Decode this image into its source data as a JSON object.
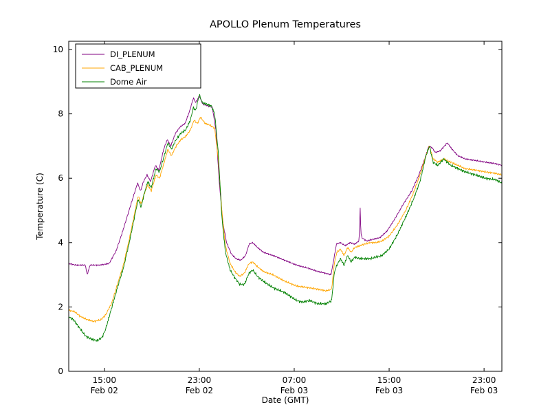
{
  "chart_data": {
    "type": "line",
    "title": "APOLLO Plenum Temperatures",
    "xlabel": "Date (GMT)",
    "ylabel": "Temperature (C)",
    "ylim": [
      0,
      10
    ],
    "yticks": [
      0,
      2,
      4,
      6,
      8,
      10
    ],
    "x_unit_hours_since": "Feb 02 12:00 GMT",
    "xlim": [
      0,
      36.5
    ],
    "xticks": [
      {
        "t": 3,
        "time": "15:00",
        "date": "Feb 02"
      },
      {
        "t": 11,
        "time": "23:00",
        "date": "Feb 02"
      },
      {
        "t": 19,
        "time": "07:00",
        "date": "Feb 03"
      },
      {
        "t": 27,
        "time": "15:00",
        "date": "Feb 03"
      },
      {
        "t": 35,
        "time": "23:00",
        "date": "Feb 03"
      }
    ],
    "legend_position": "upper-left",
    "series": [
      {
        "name": "DI_PLENUM",
        "color": "#800080",
        "noise_amp": 0.03,
        "seed": 1,
        "points": [
          [
            0,
            3.35
          ],
          [
            0.6,
            3.3
          ],
          [
            1.4,
            3.3
          ],
          [
            1.55,
            3.0
          ],
          [
            1.8,
            3.3
          ],
          [
            2.6,
            3.3
          ],
          [
            3.4,
            3.35
          ],
          [
            4,
            3.75
          ],
          [
            4.5,
            4.3
          ],
          [
            5,
            4.9
          ],
          [
            5.5,
            5.5
          ],
          [
            5.8,
            5.85
          ],
          [
            6.05,
            5.6
          ],
          [
            6.3,
            5.9
          ],
          [
            6.6,
            6.1
          ],
          [
            6.9,
            5.9
          ],
          [
            7.3,
            6.4
          ],
          [
            7.6,
            6.25
          ],
          [
            8,
            6.9
          ],
          [
            8.3,
            7.2
          ],
          [
            8.6,
            7.0
          ],
          [
            9,
            7.4
          ],
          [
            9.4,
            7.6
          ],
          [
            9.8,
            7.7
          ],
          [
            10.2,
            8.1
          ],
          [
            10.5,
            8.5
          ],
          [
            10.7,
            8.35
          ],
          [
            11,
            8.55
          ],
          [
            11.3,
            8.3
          ],
          [
            11.7,
            8.25
          ],
          [
            12.1,
            8.2
          ],
          [
            12.4,
            7.5
          ],
          [
            12.7,
            5.8
          ],
          [
            13,
            4.6
          ],
          [
            13.3,
            4.0
          ],
          [
            13.7,
            3.65
          ],
          [
            14.1,
            3.5
          ],
          [
            14.5,
            3.45
          ],
          [
            14.9,
            3.6
          ],
          [
            15.2,
            3.95
          ],
          [
            15.5,
            4.0
          ],
          [
            15.9,
            3.85
          ],
          [
            16.4,
            3.7
          ],
          [
            17.2,
            3.6
          ],
          [
            18.2,
            3.45
          ],
          [
            19.2,
            3.3
          ],
          [
            20.2,
            3.2
          ],
          [
            21,
            3.1
          ],
          [
            21.6,
            3.05
          ],
          [
            22.1,
            3.0
          ],
          [
            22.35,
            3.5
          ],
          [
            22.55,
            3.95
          ],
          [
            22.9,
            4.0
          ],
          [
            23.3,
            3.9
          ],
          [
            23.7,
            4.0
          ],
          [
            24.1,
            3.95
          ],
          [
            24.45,
            4.05
          ],
          [
            24.5,
            4.3
          ],
          [
            24.55,
            5.2
          ],
          [
            24.62,
            4.3
          ],
          [
            24.7,
            4.15
          ],
          [
            25.1,
            4.05
          ],
          [
            25.6,
            4.1
          ],
          [
            26.2,
            4.15
          ],
          [
            26.8,
            4.35
          ],
          [
            27.5,
            4.75
          ],
          [
            28.2,
            5.2
          ],
          [
            28.9,
            5.6
          ],
          [
            29.5,
            6.1
          ],
          [
            30,
            6.6
          ],
          [
            30.35,
            7.0
          ],
          [
            30.6,
            6.95
          ],
          [
            30.9,
            6.8
          ],
          [
            31.3,
            6.85
          ],
          [
            31.9,
            7.1
          ],
          [
            32.3,
            6.9
          ],
          [
            32.8,
            6.7
          ],
          [
            33.4,
            6.6
          ],
          [
            34.3,
            6.55
          ],
          [
            35.1,
            6.5
          ],
          [
            36,
            6.45
          ],
          [
            36.5,
            6.4
          ]
        ]
      },
      {
        "name": "CAB_PLENUM",
        "color": "#ffa500",
        "noise_amp": 0.04,
        "seed": 2,
        "points": [
          [
            0,
            1.9
          ],
          [
            0.5,
            1.85
          ],
          [
            1,
            1.7
          ],
          [
            1.6,
            1.6
          ],
          [
            2.1,
            1.55
          ],
          [
            2.7,
            1.6
          ],
          [
            3.1,
            1.75
          ],
          [
            3.6,
            2.1
          ],
          [
            4.1,
            2.7
          ],
          [
            4.6,
            3.3
          ],
          [
            5.1,
            4.1
          ],
          [
            5.6,
            5.0
          ],
          [
            5.85,
            5.45
          ],
          [
            6.1,
            5.2
          ],
          [
            6.35,
            5.5
          ],
          [
            6.65,
            5.8
          ],
          [
            6.95,
            5.6
          ],
          [
            7.35,
            6.1
          ],
          [
            7.65,
            6.0
          ],
          [
            8.05,
            6.5
          ],
          [
            8.35,
            6.9
          ],
          [
            8.65,
            6.7
          ],
          [
            9.05,
            7.0
          ],
          [
            9.45,
            7.2
          ],
          [
            9.85,
            7.3
          ],
          [
            10.25,
            7.5
          ],
          [
            10.55,
            7.8
          ],
          [
            10.85,
            7.7
          ],
          [
            11.1,
            7.9
          ],
          [
            11.5,
            7.7
          ],
          [
            11.9,
            7.65
          ],
          [
            12.3,
            7.55
          ],
          [
            12.6,
            6.6
          ],
          [
            12.9,
            5.0
          ],
          [
            13.2,
            3.9
          ],
          [
            13.6,
            3.35
          ],
          [
            14,
            3.1
          ],
          [
            14.4,
            2.95
          ],
          [
            14.8,
            3.05
          ],
          [
            15.2,
            3.35
          ],
          [
            15.5,
            3.4
          ],
          [
            15.9,
            3.25
          ],
          [
            16.4,
            3.1
          ],
          [
            17.2,
            3.0
          ],
          [
            18.2,
            2.8
          ],
          [
            19.2,
            2.65
          ],
          [
            20.2,
            2.6
          ],
          [
            21,
            2.55
          ],
          [
            21.7,
            2.5
          ],
          [
            22.15,
            2.55
          ],
          [
            22.4,
            3.4
          ],
          [
            22.6,
            3.7
          ],
          [
            22.9,
            3.8
          ],
          [
            23.2,
            3.6
          ],
          [
            23.5,
            3.85
          ],
          [
            23.8,
            3.7
          ],
          [
            24.1,
            3.85
          ],
          [
            24.5,
            3.9
          ],
          [
            24.9,
            3.95
          ],
          [
            25.4,
            4.0
          ],
          [
            25.9,
            4.0
          ],
          [
            26.4,
            4.05
          ],
          [
            27,
            4.2
          ],
          [
            27.7,
            4.55
          ],
          [
            28.4,
            5.0
          ],
          [
            29,
            5.5
          ],
          [
            29.6,
            6.1
          ],
          [
            30.1,
            6.7
          ],
          [
            30.4,
            7.0
          ],
          [
            30.7,
            6.6
          ],
          [
            31.1,
            6.5
          ],
          [
            31.6,
            6.6
          ],
          [
            32.2,
            6.5
          ],
          [
            32.8,
            6.4
          ],
          [
            33.4,
            6.3
          ],
          [
            34.3,
            6.25
          ],
          [
            35.1,
            6.2
          ],
          [
            36,
            6.15
          ],
          [
            36.5,
            6.1
          ]
        ]
      },
      {
        "name": "Dome Air",
        "color": "#008000",
        "noise_amp": 0.055,
        "seed": 3,
        "points": [
          [
            0,
            1.7
          ],
          [
            0.4,
            1.6
          ],
          [
            0.9,
            1.35
          ],
          [
            1.4,
            1.1
          ],
          [
            1.9,
            1.0
          ],
          [
            2.4,
            0.95
          ],
          [
            2.8,
            1.05
          ],
          [
            3.1,
            1.3
          ],
          [
            3.6,
            1.95
          ],
          [
            4.1,
            2.6
          ],
          [
            4.6,
            3.2
          ],
          [
            5.1,
            4.0
          ],
          [
            5.6,
            4.9
          ],
          [
            5.85,
            5.35
          ],
          [
            6.1,
            5.1
          ],
          [
            6.35,
            5.5
          ],
          [
            6.65,
            5.9
          ],
          [
            6.95,
            5.7
          ],
          [
            7.35,
            6.3
          ],
          [
            7.65,
            6.2
          ],
          [
            8.05,
            6.7
          ],
          [
            8.35,
            7.1
          ],
          [
            8.65,
            6.9
          ],
          [
            9.05,
            7.2
          ],
          [
            9.45,
            7.4
          ],
          [
            9.85,
            7.5
          ],
          [
            10.25,
            7.8
          ],
          [
            10.5,
            8.2
          ],
          [
            10.7,
            8.1
          ],
          [
            11,
            8.6
          ],
          [
            11.25,
            8.35
          ],
          [
            11.6,
            8.3
          ],
          [
            12,
            8.25
          ],
          [
            12.3,
            8.0
          ],
          [
            12.6,
            6.8
          ],
          [
            12.9,
            4.8
          ],
          [
            13.2,
            3.7
          ],
          [
            13.6,
            3.15
          ],
          [
            14,
            2.9
          ],
          [
            14.4,
            2.7
          ],
          [
            14.8,
            2.7
          ],
          [
            15.2,
            3.05
          ],
          [
            15.5,
            3.15
          ],
          [
            15.9,
            2.95
          ],
          [
            16.4,
            2.8
          ],
          [
            17.2,
            2.6
          ],
          [
            18.2,
            2.45
          ],
          [
            19.2,
            2.2
          ],
          [
            19.7,
            2.15
          ],
          [
            20.3,
            2.2
          ],
          [
            21,
            2.1
          ],
          [
            21.7,
            2.1
          ],
          [
            22.15,
            2.2
          ],
          [
            22.4,
            3.1
          ],
          [
            22.6,
            3.3
          ],
          [
            22.9,
            3.5
          ],
          [
            23.2,
            3.3
          ],
          [
            23.5,
            3.6
          ],
          [
            23.8,
            3.4
          ],
          [
            24.1,
            3.55
          ],
          [
            24.5,
            3.5
          ],
          [
            24.9,
            3.5
          ],
          [
            25.4,
            3.5
          ],
          [
            25.9,
            3.55
          ],
          [
            26.4,
            3.6
          ],
          [
            27,
            3.8
          ],
          [
            27.7,
            4.25
          ],
          [
            28.4,
            4.8
          ],
          [
            29,
            5.3
          ],
          [
            29.6,
            5.9
          ],
          [
            30.1,
            6.7
          ],
          [
            30.4,
            7.0
          ],
          [
            30.7,
            6.5
          ],
          [
            31.1,
            6.4
          ],
          [
            31.6,
            6.6
          ],
          [
            32.2,
            6.4
          ],
          [
            32.8,
            6.3
          ],
          [
            33.4,
            6.2
          ],
          [
            34.3,
            6.1
          ],
          [
            35.1,
            6.0
          ],
          [
            36,
            5.95
          ],
          [
            36.5,
            5.85
          ]
        ]
      }
    ]
  }
}
